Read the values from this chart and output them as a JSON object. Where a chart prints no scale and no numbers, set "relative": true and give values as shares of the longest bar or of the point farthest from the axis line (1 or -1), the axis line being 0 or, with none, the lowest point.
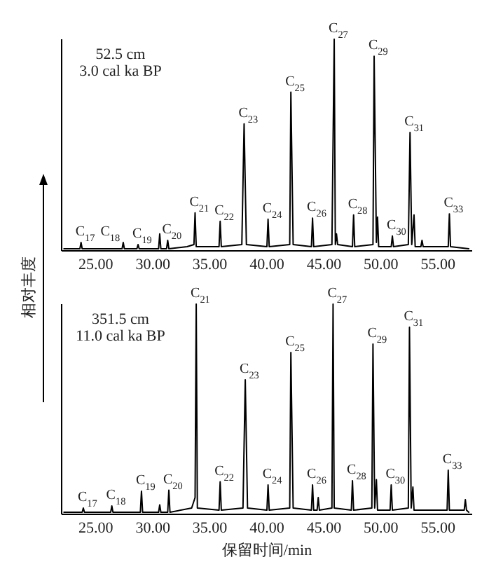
{
  "chart_data": [
    {
      "type": "line",
      "relative": true,
      "xlim": [
        22,
        58
      ],
      "xticks": [
        {
          "value": 25,
          "label": "25.00"
        },
        {
          "value": 30,
          "label": "30.00"
        },
        {
          "value": 35,
          "label": "35.00"
        },
        {
          "value": 40,
          "label": "40.00"
        },
        {
          "value": 45,
          "label": "45.00"
        },
        {
          "value": 50,
          "label": "50.00"
        },
        {
          "value": 55,
          "label": "55.00"
        }
      ],
      "ylabel": "相对丰度",
      "series": [
        {
          "color": "#000000",
          "x": [
            22.2,
            23.6,
            23.7,
            23.8,
            25.0,
            27.3,
            27.4,
            27.5,
            28.6,
            28.7,
            28.8,
            30.5,
            30.6,
            30.7,
            31.2,
            31.3,
            31.4,
            33.0,
            33.6,
            33.7,
            33.8,
            35.8,
            35.9,
            36.0,
            37.8,
            38.0,
            38.2,
            40.0,
            40.1,
            40.2,
            42.0,
            42.1,
            42.3,
            43.9,
            44.0,
            44.1,
            45.7,
            45.9,
            46.0,
            46.1,
            46.2,
            47.5,
            47.6,
            47.7,
            49.3,
            49.4,
            49.6,
            49.7,
            49.8,
            50.9,
            51.0,
            51.1,
            52.4,
            52.55,
            52.7,
            52.9,
            53.0,
            53.5,
            53.6,
            53.7,
            55.9,
            56.0,
            56.1,
            57.7
          ],
          "values": [
            0.01,
            0.01,
            0.04,
            0.01,
            0.01,
            0.01,
            0.04,
            0.01,
            0.01,
            0.03,
            0.01,
            0.01,
            0.08,
            0.01,
            0.01,
            0.05,
            0.01,
            0.02,
            0.03,
            0.18,
            0.02,
            0.02,
            0.14,
            0.02,
            0.03,
            0.6,
            0.03,
            0.02,
            0.15,
            0.02,
            0.03,
            0.75,
            0.03,
            0.02,
            0.155,
            0.02,
            0.03,
            1,
            0.03,
            0.08,
            0.03,
            0.02,
            0.17,
            0.02,
            0.03,
            0.92,
            0.04,
            0.16,
            0.02,
            0.02,
            0.07,
            0.02,
            0.03,
            0.56,
            0.03,
            0.17,
            0.02,
            0.02,
            0.05,
            0.02,
            0.02,
            0.175,
            0.02,
            0.01
          ]
        }
      ],
      "annotations": [
        "52.5 cm",
        "3.0 cal ka BP",
        {
          "text": "C$_{17}$",
          "x": 23.7,
          "y": 0.04
        },
        {
          "text": "C$_{18}$",
          "x": 25.9,
          "y": 0.04
        },
        {
          "text": "C$_{19}$",
          "x": 28.7,
          "y": 0.03
        },
        {
          "text": "C$_{20}$",
          "x": 31.3,
          "y": 0.05
        },
        {
          "text": "C$_{21}$",
          "x": 33.7,
          "y": 0.18
        },
        {
          "text": "C$_{22}$",
          "x": 35.9,
          "y": 0.14
        },
        {
          "text": "C$_{23}$",
          "x": 38.0,
          "y": 0.6
        },
        {
          "text": "C$_{24}$",
          "x": 40.1,
          "y": 0.15
        },
        {
          "text": "C$_{25}$",
          "x": 42.1,
          "y": 0.75
        },
        {
          "text": "C$_{26}$",
          "x": 44.0,
          "y": 0.155
        },
        {
          "text": "C$_{27}$",
          "x": 45.9,
          "y": 1
        },
        {
          "text": "C$_{28}$",
          "x": 47.6,
          "y": 0.17
        },
        {
          "text": "C$_{29}$",
          "x": 49.4,
          "y": 0.92
        },
        {
          "text": "C$_{30}$",
          "x": 51.0,
          "y": 0.07
        },
        {
          "text": "C$_{31}$",
          "x": 52.55,
          "y": 0.56
        },
        {
          "text": "C$_{33}$",
          "x": 56.0,
          "y": 0.175
        }
      ]
    },
    {
      "type": "line",
      "relative": true,
      "xlim": [
        22,
        58
      ],
      "xticks": [
        {
          "value": 25,
          "label": "25.00"
        },
        {
          "value": 30,
          "label": "30.00"
        },
        {
          "value": 35,
          "label": "35.00"
        },
        {
          "value": 40,
          "label": "40.00"
        },
        {
          "value": 45,
          "label": "45.00"
        },
        {
          "value": 50,
          "label": "50.00"
        },
        {
          "value": 55,
          "label": "55.00"
        }
      ],
      "xlabel": "保留时间/min",
      "series": [
        {
          "color": "#000000",
          "x": [
            22.2,
            23.8,
            23.9,
            24.0,
            26.3,
            26.4,
            26.5,
            28.9,
            29.0,
            29.1,
            30.5,
            30.6,
            30.7,
            31.3,
            31.4,
            31.5,
            33.4,
            33.7,
            33.8,
            33.9,
            35.8,
            35.9,
            36.0,
            37.9,
            38.1,
            38.3,
            40.0,
            40.1,
            40.2,
            42.0,
            42.1,
            42.3,
            43.9,
            44.0,
            44.1,
            44.4,
            44.5,
            44.6,
            45.7,
            45.8,
            45.9,
            47.4,
            47.5,
            47.6,
            49.2,
            49.3,
            49.45,
            49.6,
            49.7,
            50.8,
            50.9,
            51.0,
            52.4,
            52.5,
            52.65,
            52.8,
            52.9,
            55.8,
            55.9,
            56.0,
            57.3,
            57.4,
            57.5,
            57.7
          ],
          "values": [
            0.01,
            0.01,
            0.03,
            0.01,
            0.01,
            0.04,
            0.01,
            0.01,
            0.11,
            0.01,
            0.01,
            0.045,
            0.01,
            0.01,
            0.115,
            0.01,
            0.03,
            0.08,
            1,
            0.03,
            0.02,
            0.155,
            0.02,
            0.03,
            0.64,
            0.03,
            0.02,
            0.14,
            0.02,
            0.03,
            0.77,
            0.03,
            0.02,
            0.14,
            0.02,
            0.02,
            0.08,
            0.02,
            0.03,
            1,
            0.03,
            0.02,
            0.16,
            0.02,
            0.03,
            0.81,
            0.03,
            0.165,
            0.02,
            0.02,
            0.14,
            0.02,
            0.03,
            0.89,
            0.03,
            0.13,
            0.02,
            0.02,
            0.21,
            0.02,
            0.02,
            0.07,
            0.02,
            0.01
          ]
        }
      ],
      "annotations": [
        "351.5 cm",
        "11.0 cal ka BP",
        {
          "text": "C$_{17}$",
          "x": 23.9,
          "y": 0.03
        },
        {
          "text": "C$_{18}$",
          "x": 26.4,
          "y": 0.04
        },
        {
          "text": "C$_{19}$",
          "x": 29.0,
          "y": 0.11
        },
        {
          "text": "C$_{20}$",
          "x": 31.4,
          "y": 0.115
        },
        {
          "text": "C$_{21}$",
          "x": 33.8,
          "y": 1
        },
        {
          "text": "C$_{22}$",
          "x": 35.9,
          "y": 0.155
        },
        {
          "text": "C$_{23}$",
          "x": 38.1,
          "y": 0.64
        },
        {
          "text": "C$_{24}$",
          "x": 40.1,
          "y": 0.14
        },
        {
          "text": "C$_{25}$",
          "x": 42.1,
          "y": 0.77
        },
        {
          "text": "C$_{26}$",
          "x": 44.0,
          "y": 0.14
        },
        {
          "text": "C$_{27}$",
          "x": 45.8,
          "y": 1
        },
        {
          "text": "C$_{28}$",
          "x": 47.5,
          "y": 0.16
        },
        {
          "text": "C$_{29}$",
          "x": 49.3,
          "y": 0.81
        },
        {
          "text": "C$_{30}$",
          "x": 50.9,
          "y": 0.14
        },
        {
          "text": "C$_{31}$",
          "x": 52.5,
          "y": 0.89
        },
        {
          "text": "C$_{33}$",
          "x": 55.9,
          "y": 0.21
        }
      ]
    }
  ]
}
